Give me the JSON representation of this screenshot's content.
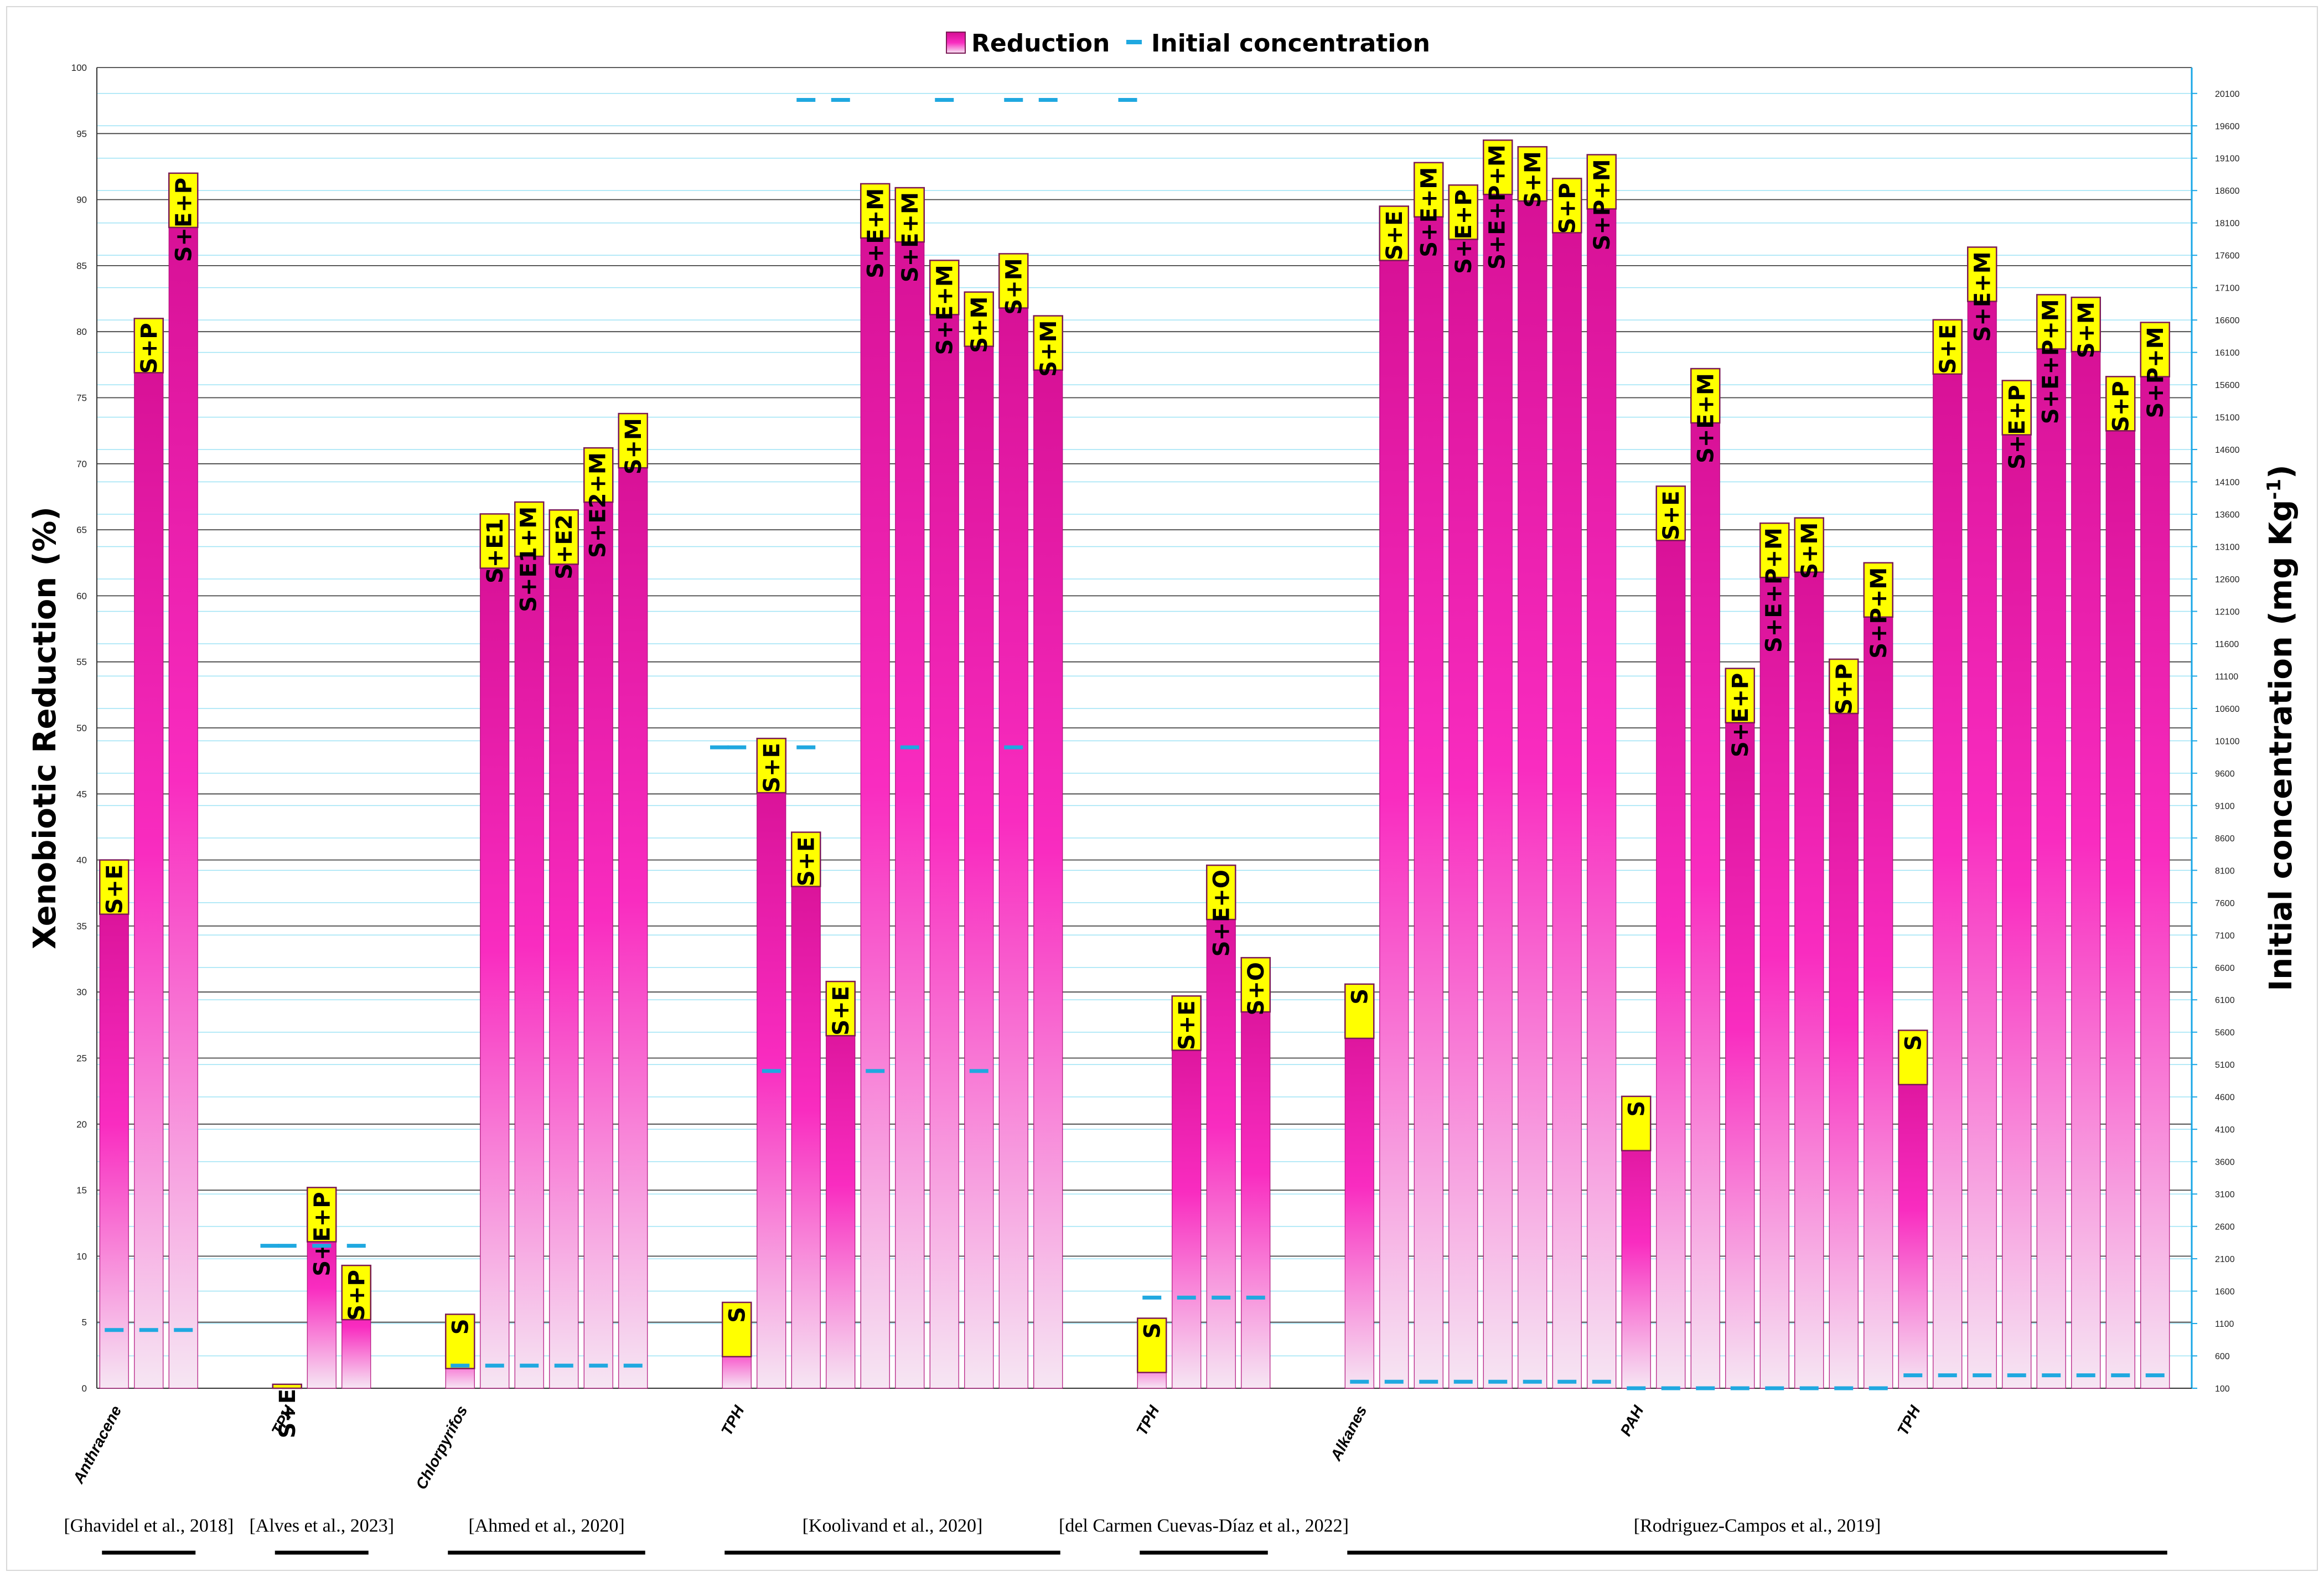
{
  "chart_data": {
    "type": "bar",
    "title": "",
    "ylabel": "Xenobiotic Reduction (%)",
    "y2label": "Initial concentration (mg Kg-1)",
    "ylabel2_parts": {
      "main": "Initial concentration (mg Kg",
      "sup": "-1",
      "end": ")"
    },
    "ylim": [
      0,
      100
    ],
    "yticks": [
      "0",
      "5",
      "10",
      "15",
      "20",
      "25",
      "30",
      "35",
      "40",
      "45",
      "50",
      "55",
      "60",
      "65",
      "70",
      "75",
      "80",
      "85",
      "90",
      "95",
      "100"
    ],
    "y2lim": [
      100,
      20500
    ],
    "y2ticks": [
      "100",
      "600",
      "1100",
      "1600",
      "2100",
      "2600",
      "3100",
      "3600",
      "4100",
      "4600",
      "5100",
      "5600",
      "6100",
      "6600",
      "7100",
      "7600",
      "8100",
      "8600",
      "9100",
      "9600",
      "10100",
      "10600",
      "11100",
      "11600",
      "12100",
      "12600",
      "13100",
      "13600",
      "14100",
      "14600",
      "15100",
      "15600",
      "16100",
      "16600",
      "17100",
      "17600",
      "18100",
      "18600",
      "19100",
      "19600",
      "20100"
    ],
    "legend": [
      {
        "name": "Reduction",
        "marker": "bar",
        "color": "#e6139f"
      },
      {
        "name": "Initial concentration",
        "marker": "dash",
        "color": "#1fa8e0"
      }
    ],
    "legend_position": "top-center",
    "colors": {
      "bar_top": "#d40e92",
      "bar_mid": "#f92cc0",
      "bar_bottom": "#f6e6f3",
      "cap_fill": "#ffff00",
      "cap_border": "#7a1a55",
      "dash": "#1fa8e0",
      "grid_major": "#444444",
      "grid_minor": "#9ee3f5",
      "right_axis": "#19a7e6"
    },
    "bars": [
      {
        "x": 0,
        "value": 40.0,
        "label": "S+E",
        "conc": 1000
      },
      {
        "x": 1,
        "value": 81.0,
        "label": "S+P",
        "conc": 1000
      },
      {
        "x": 2,
        "value": 92.0,
        "label": "S+E+P",
        "conc": 1000
      },
      {
        "x": 5,
        "value": 0.3,
        "label": "S+E",
        "conc": 2300
      },
      {
        "x": 6,
        "value": 15.2,
        "label": "S+E+P",
        "conc": 2300
      },
      {
        "x": 7,
        "value": 9.3,
        "label": "S+P",
        "conc": 2300
      },
      {
        "x": 10,
        "value": 5.6,
        "label": "S",
        "conc": 450
      },
      {
        "x": 11,
        "value": 66.2,
        "label": "S+E1",
        "conc": 450
      },
      {
        "x": 12,
        "value": 67.1,
        "label": "S+E1+M",
        "conc": 450
      },
      {
        "x": 13,
        "value": 66.5,
        "label": "S+E2",
        "conc": 450
      },
      {
        "x": 14,
        "value": 71.2,
        "label": "S+E2+M",
        "conc": 450
      },
      {
        "x": 15,
        "value": 73.8,
        "label": "S+M",
        "conc": 450
      },
      {
        "x": 18,
        "value": 6.5,
        "label": "S",
        "conc": 10000
      },
      {
        "x": 19,
        "value": 49.2,
        "label": "S+E",
        "conc": 5000
      },
      {
        "x": 20,
        "value": 42.1,
        "label": "S+E",
        "conc": 10000
      },
      {
        "x": 21,
        "value": 30.8,
        "label": "S+E",
        "conc": 20000
      },
      {
        "x": 22,
        "value": 91.2,
        "label": "S+E+M",
        "conc": 5000
      },
      {
        "x": 23,
        "value": 90.9,
        "label": "S+E+M",
        "conc": 10000
      },
      {
        "x": 24,
        "value": 85.4,
        "label": "S+E+M",
        "conc": 20000
      },
      {
        "x": 25,
        "value": 83.0,
        "label": "S+M",
        "conc": 5000
      },
      {
        "x": 26,
        "value": 85.9,
        "label": "S+M",
        "conc": 10000
      },
      {
        "x": 27,
        "value": 81.2,
        "label": "S+M",
        "conc": 20000
      },
      {
        "x": 30,
        "value": 5.3,
        "label": "S",
        "conc": 1500
      },
      {
        "x": 31,
        "value": 29.7,
        "label": "S+E",
        "conc": 1500
      },
      {
        "x": 32,
        "value": 39.6,
        "label": "S+E+O",
        "conc": 1500
      },
      {
        "x": 33,
        "value": 32.6,
        "label": "S+O",
        "conc": 1500
      },
      {
        "x": 36,
        "value": 30.6,
        "label": "S",
        "conc": 200
      },
      {
        "x": 37,
        "value": 89.5,
        "label": "S+E",
        "conc": 200
      },
      {
        "x": 38,
        "value": 92.8,
        "label": "S+E+M",
        "conc": 200
      },
      {
        "x": 39,
        "value": 91.1,
        "label": "S+E+P",
        "conc": 200
      },
      {
        "x": 40,
        "value": 94.5,
        "label": "S+E+P+M",
        "conc": 200
      },
      {
        "x": 41,
        "value": 94.0,
        "label": "S+M",
        "conc": 200
      },
      {
        "x": 42,
        "value": 91.6,
        "label": "S+P",
        "conc": 200
      },
      {
        "x": 43,
        "value": 93.4,
        "label": "S+P+M",
        "conc": 200
      },
      {
        "x": 44,
        "value": 22.1,
        "label": "S",
        "conc": 100
      },
      {
        "x": 45,
        "value": 68.3,
        "label": "S+E",
        "conc": 100
      },
      {
        "x": 46,
        "value": 77.2,
        "label": "S+E+M",
        "conc": 100
      },
      {
        "x": 47,
        "value": 54.5,
        "label": "S+E+P",
        "conc": 100
      },
      {
        "x": 48,
        "value": 65.5,
        "label": "S+E+P+M",
        "conc": 100
      },
      {
        "x": 49,
        "value": 65.9,
        "label": "S+M",
        "conc": 100
      },
      {
        "x": 50,
        "value": 55.2,
        "label": "S+P",
        "conc": 100
      },
      {
        "x": 51,
        "value": 62.5,
        "label": "S+P+M",
        "conc": 100
      },
      {
        "x": 52,
        "value": 27.1,
        "label": "S",
        "conc": 300
      },
      {
        "x": 53,
        "value": 80.9,
        "label": "S+E",
        "conc": 300
      },
      {
        "x": 54,
        "value": 86.4,
        "label": "S+E+M",
        "conc": 300
      },
      {
        "x": 55,
        "value": 76.3,
        "label": "S+E+P",
        "conc": 300
      },
      {
        "x": 56,
        "value": 82.8,
        "label": "S+E+P+M",
        "conc": 300
      },
      {
        "x": 57,
        "value": 82.6,
        "label": "S+M",
        "conc": 300
      },
      {
        "x": 58,
        "value": 76.6,
        "label": "S+P",
        "conc": 300
      },
      {
        "x": 59,
        "value": 80.7,
        "label": "S+P+M",
        "conc": 300
      }
    ],
    "extra_dashes": [
      {
        "x": 4.5,
        "conc": 2300
      },
      {
        "x": 17.5,
        "conc": 10000
      },
      {
        "x": 20.0,
        "conc": 20000
      },
      {
        "x": 26.0,
        "conc": 20000
      },
      {
        "x": 29.3,
        "conc": 20000
      }
    ],
    "category_labels": [
      {
        "text": "Anthracene",
        "x": 0
      },
      {
        "text": "TPH",
        "x": 5
      },
      {
        "text": "Chlorpyrifos",
        "x": 10
      },
      {
        "text": "TPH",
        "x": 18
      },
      {
        "text": "TPH",
        "x": 30
      },
      {
        "text": "Alkanes",
        "x": 36
      },
      {
        "text": "PAH",
        "x": 44
      },
      {
        "text": "TPH",
        "x": 52
      }
    ],
    "studies": [
      {
        "label": "[Ghavidel et al., 2018]",
        "from": 0,
        "to": 2
      },
      {
        "label": "[Alves et al., 2023]",
        "from": 5,
        "to": 7
      },
      {
        "label": "[Ahmed et al., 2020]",
        "from": 10,
        "to": 15
      },
      {
        "label": "[Koolivand et al., 2020]",
        "from": 18,
        "to": 27
      },
      {
        "label": "[del Carmen Cuevas-Díaz et al., 2022]",
        "from": 30,
        "to": 33
      },
      {
        "label": "[Rodriguez-Campos et al., 2019]",
        "from": 36,
        "to": 59
      }
    ]
  }
}
